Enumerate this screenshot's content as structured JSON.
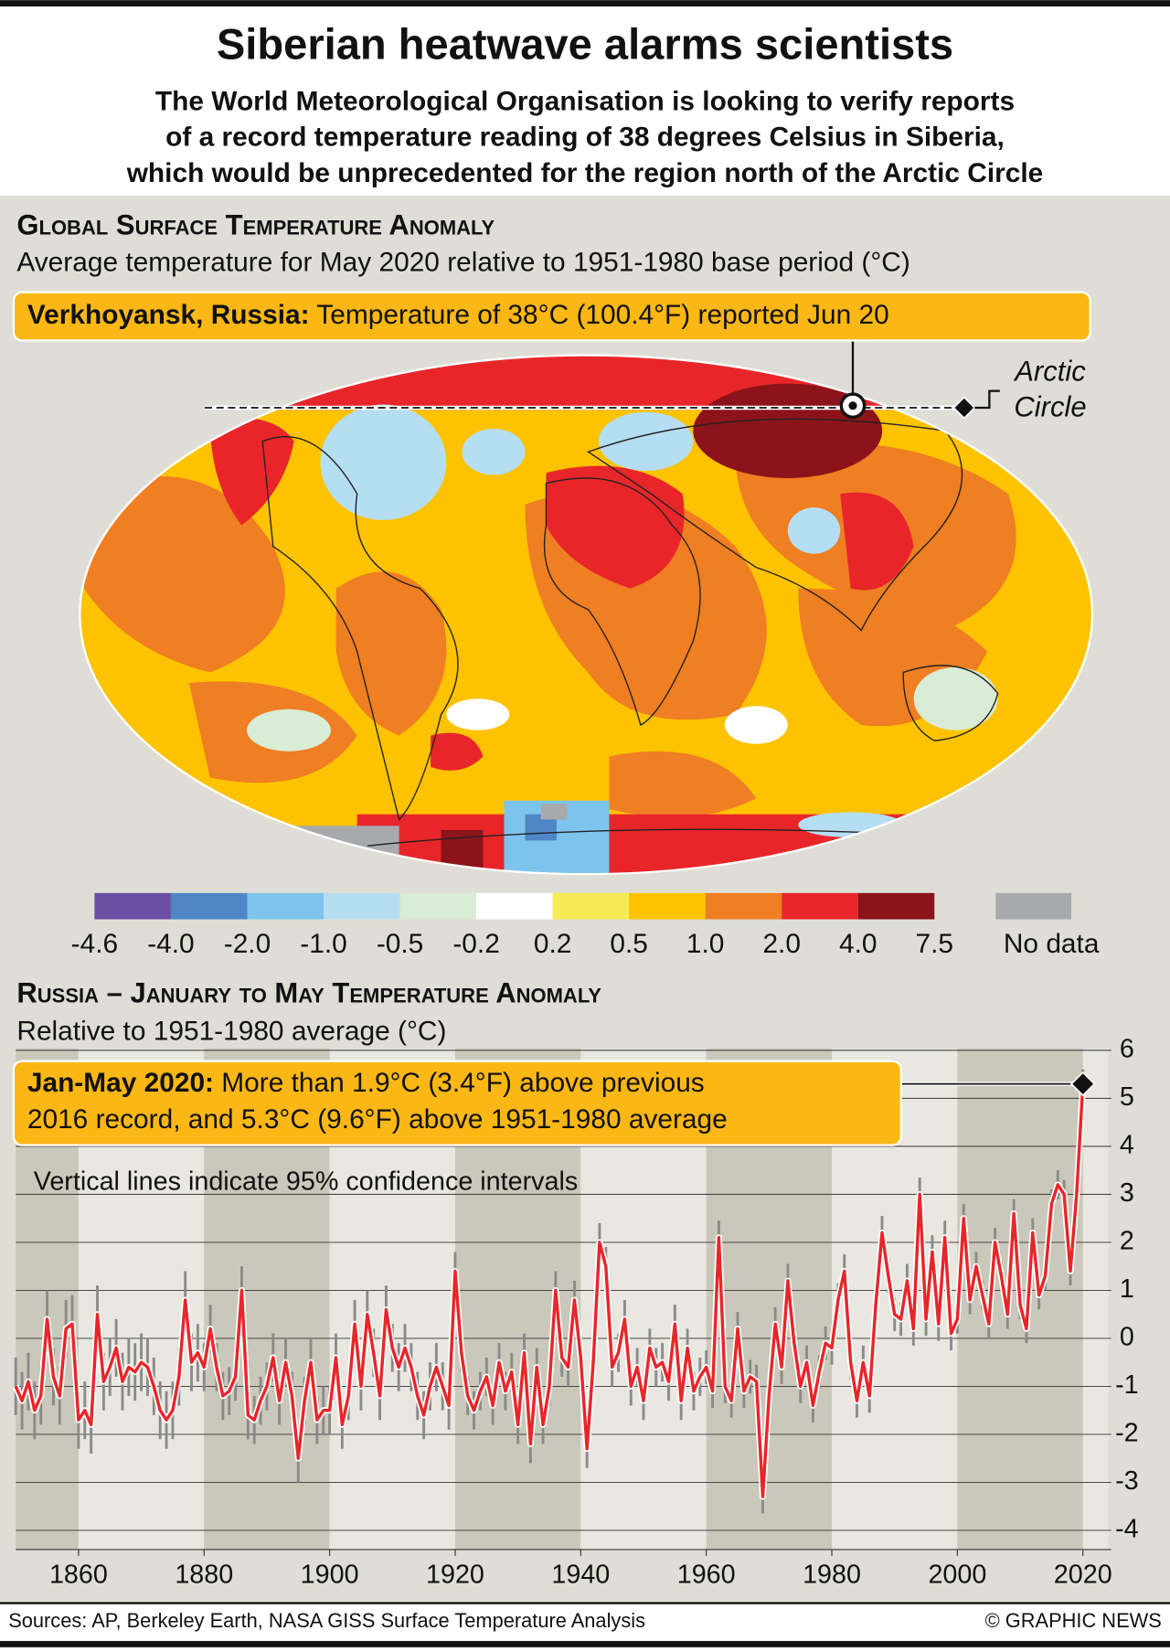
{
  "header": {
    "title": "Siberian heatwave alarms scientists",
    "subtitle": [
      "The World Meteorological Organisation is looking to verify reports",
      "of a record temperature reading of 38 degrees Celsius in Siberia,",
      "which would be unprecedented for the region north of the Arctic Circle"
    ]
  },
  "map": {
    "heading": "Global Surface Temperature Anomaly",
    "subheading": "Average temperature for May 2020 relative to 1951-1980 base period (°C)",
    "callout": {
      "bold": "Verkhoyansk, Russia:",
      "text": " Temperature of 38°C (100.4°F) reported Jun 20"
    },
    "arctic_label": [
      "Arctic",
      "Circle"
    ],
    "legend": {
      "labels": [
        "-4.6",
        "-4.0",
        "-2.0",
        "-1.0",
        "-0.5",
        "-0.2",
        "0.2",
        "0.5",
        "1.0",
        "2.0",
        "4.0",
        "7.5"
      ],
      "colors": [
        "#6a4ea2",
        "#4f86c6",
        "#7cc4ec",
        "#b5def3",
        "#d9ecd5",
        "#ffffff",
        "#f7eb55",
        "#fdc300",
        "#f07e22",
        "#e8262a",
        "#8b1319"
      ],
      "no_data_label": "No data",
      "no_data_color": "#a7a9ac"
    }
  },
  "chart_data": {
    "type": "line",
    "title": "Russia – January to May Temperature Anomaly",
    "subtitle": "Relative to 1951-1980 average (°C)",
    "annotation": "Vertical lines indicate 95% confidence intervals",
    "callout": {
      "bold": "Jan-May 2020:",
      "lines": [
        " More than 1.9°C (3.4°F) above previous",
        "2016 record, and 5.3°C (9.6°F) above 1951-1980 average"
      ]
    },
    "color": "#e8262a",
    "error_color": "#8a8a8a",
    "x": [
      1850,
      1851,
      1852,
      1853,
      1854,
      1855,
      1856,
      1857,
      1858,
      1859,
      1860,
      1861,
      1862,
      1863,
      1864,
      1865,
      1866,
      1867,
      1868,
      1869,
      1870,
      1871,
      1872,
      1873,
      1874,
      1875,
      1876,
      1877,
      1878,
      1879,
      1880,
      1881,
      1882,
      1883,
      1884,
      1885,
      1886,
      1887,
      1888,
      1889,
      1890,
      1891,
      1892,
      1893,
      1894,
      1895,
      1896,
      1897,
      1898,
      1899,
      1900,
      1901,
      1902,
      1903,
      1904,
      1905,
      1906,
      1907,
      1908,
      1909,
      1910,
      1911,
      1912,
      1913,
      1914,
      1915,
      1916,
      1917,
      1918,
      1919,
      1920,
      1921,
      1922,
      1923,
      1924,
      1925,
      1926,
      1927,
      1928,
      1929,
      1930,
      1931,
      1932,
      1933,
      1934,
      1935,
      1936,
      1937,
      1938,
      1939,
      1940,
      1941,
      1942,
      1943,
      1944,
      1945,
      1946,
      1947,
      1948,
      1949,
      1950,
      1951,
      1952,
      1953,
      1954,
      1955,
      1956,
      1957,
      1958,
      1959,
      1960,
      1961,
      1962,
      1963,
      1964,
      1965,
      1966,
      1967,
      1968,
      1969,
      1970,
      1971,
      1972,
      1973,
      1974,
      1975,
      1976,
      1977,
      1978,
      1979,
      1980,
      1981,
      1982,
      1983,
      1984,
      1985,
      1986,
      1987,
      1988,
      1989,
      1990,
      1991,
      1992,
      1993,
      1994,
      1995,
      1996,
      1997,
      1998,
      1999,
      2000,
      2001,
      2002,
      2003,
      2004,
      2005,
      2006,
      2007,
      2008,
      2009,
      2010,
      2011,
      2012,
      2013,
      2014,
      2015,
      2016,
      2017,
      2018,
      2019,
      2020
    ],
    "values": [
      -1.0,
      -1.3,
      -0.9,
      -1.5,
      -1.2,
      0.4,
      -0.8,
      -1.2,
      0.2,
      0.3,
      -1.7,
      -1.5,
      -1.8,
      0.5,
      -0.9,
      -0.6,
      -0.2,
      -0.9,
      -0.6,
      -0.7,
      -0.5,
      -0.6,
      -1.0,
      -1.5,
      -1.7,
      -1.5,
      -0.8,
      0.8,
      -0.5,
      -0.3,
      -0.6,
      0.2,
      -0.6,
      -1.2,
      -1.1,
      -0.8,
      1.0,
      -1.6,
      -1.7,
      -1.3,
      -1.0,
      -0.4,
      -1.3,
      -0.5,
      -1.2,
      -2.5,
      -1.3,
      -0.5,
      -1.7,
      -1.5,
      -1.5,
      -0.4,
      -1.8,
      -1.2,
      0.3,
      -1.0,
      0.5,
      -0.3,
      -1.2,
      0.6,
      -0.2,
      -0.6,
      -0.2,
      -0.6,
      -1.2,
      -1.6,
      -1.0,
      -0.6,
      -1.0,
      -1.4,
      1.4,
      -0.3,
      -1.2,
      -1.5,
      -1.1,
      -0.8,
      -1.4,
      -0.5,
      -1.1,
      -0.7,
      -1.8,
      -0.3,
      -2.2,
      -0.6,
      -1.8,
      -1.0,
      1.0,
      -0.4,
      -0.6,
      0.8,
      -0.4,
      -2.3,
      -0.5,
      2.0,
      1.5,
      -0.6,
      -0.3,
      0.4,
      -1.0,
      -0.6,
      -1.3,
      -0.2,
      -0.6,
      -0.5,
      -0.9,
      0.3,
      -1.3,
      -0.2,
      -1.1,
      -0.8,
      -0.6,
      -1.1,
      2.1,
      -1.0,
      -1.3,
      0.2,
      -1.1,
      -0.8,
      -0.9,
      -3.3,
      -1.2,
      0.3,
      -0.6,
      1.2,
      -0.1,
      -1.0,
      -0.5,
      -1.4,
      -0.7,
      -0.1,
      -0.2,
      0.8,
      1.4,
      -0.5,
      -1.3,
      -0.5,
      -1.2,
      0.7,
      2.2,
      1.3,
      0.5,
      0.4,
      1.2,
      0.2,
      3.0,
      0.4,
      1.8,
      0.3,
      2.1,
      0.1,
      0.4,
      2.5,
      0.8,
      1.5,
      0.9,
      0.3,
      2.0,
      1.3,
      0.5,
      2.6,
      0.7,
      0.2,
      2.2,
      0.9,
      1.3,
      2.8,
      3.2,
      3.0,
      1.4,
      3.0,
      5.3
    ],
    "errors": [
      0.6,
      0.6,
      0.6,
      0.6,
      0.6,
      0.6,
      0.6,
      0.6,
      0.6,
      0.6,
      0.6,
      0.6,
      0.6,
      0.6,
      0.6,
      0.6,
      0.6,
      0.6,
      0.6,
      0.6,
      0.6,
      0.6,
      0.6,
      0.6,
      0.6,
      0.6,
      0.6,
      0.6,
      0.6,
      0.6,
      0.5,
      0.5,
      0.5,
      0.5,
      0.5,
      0.5,
      0.5,
      0.5,
      0.5,
      0.5,
      0.5,
      0.5,
      0.5,
      0.5,
      0.5,
      0.5,
      0.5,
      0.5,
      0.5,
      0.5,
      0.5,
      0.5,
      0.5,
      0.5,
      0.5,
      0.5,
      0.5,
      0.5,
      0.5,
      0.5,
      0.5,
      0.5,
      0.5,
      0.5,
      0.5,
      0.5,
      0.5,
      0.5,
      0.5,
      0.5,
      0.4,
      0.4,
      0.4,
      0.4,
      0.4,
      0.4,
      0.4,
      0.4,
      0.4,
      0.4,
      0.4,
      0.4,
      0.4,
      0.4,
      0.4,
      0.4,
      0.4,
      0.4,
      0.4,
      0.4,
      0.4,
      0.4,
      0.4,
      0.4,
      0.4,
      0.4,
      0.4,
      0.4,
      0.4,
      0.4,
      0.4,
      0.4,
      0.4,
      0.4,
      0.4,
      0.4,
      0.4,
      0.4,
      0.4,
      0.4,
      0.35,
      0.35,
      0.35,
      0.35,
      0.35,
      0.35,
      0.35,
      0.35,
      0.35,
      0.35,
      0.35,
      0.35,
      0.35,
      0.35,
      0.35,
      0.35,
      0.35,
      0.35,
      0.35,
      0.35,
      0.35,
      0.35,
      0.35,
      0.35,
      0.35,
      0.35,
      0.35,
      0.35,
      0.35,
      0.35,
      0.35,
      0.35,
      0.35,
      0.35,
      0.35,
      0.35,
      0.35,
      0.35,
      0.35,
      0.35,
      0.3,
      0.3,
      0.3,
      0.3,
      0.3,
      0.3,
      0.3,
      0.3,
      0.3,
      0.3,
      0.3,
      0.3,
      0.3,
      0.3,
      0.3,
      0.3,
      0.3,
      0.3,
      0.3,
      0.3,
      0.3
    ],
    "xlim": [
      1850,
      2024
    ],
    "xticks": [
      1860,
      1880,
      1900,
      1920,
      1940,
      1960,
      1980,
      2000,
      2020
    ],
    "ylim": [
      -4.4,
      6.3
    ],
    "yticks": [
      -4,
      -3,
      -2,
      -1,
      0,
      1,
      2,
      3,
      4,
      5,
      6
    ],
    "grid": true
  },
  "footer": {
    "sources": "Sources: AP, Berkeley Earth, NASA GISS Surface Temperature Analysis",
    "credit": "© GRAPHIC NEWS"
  }
}
